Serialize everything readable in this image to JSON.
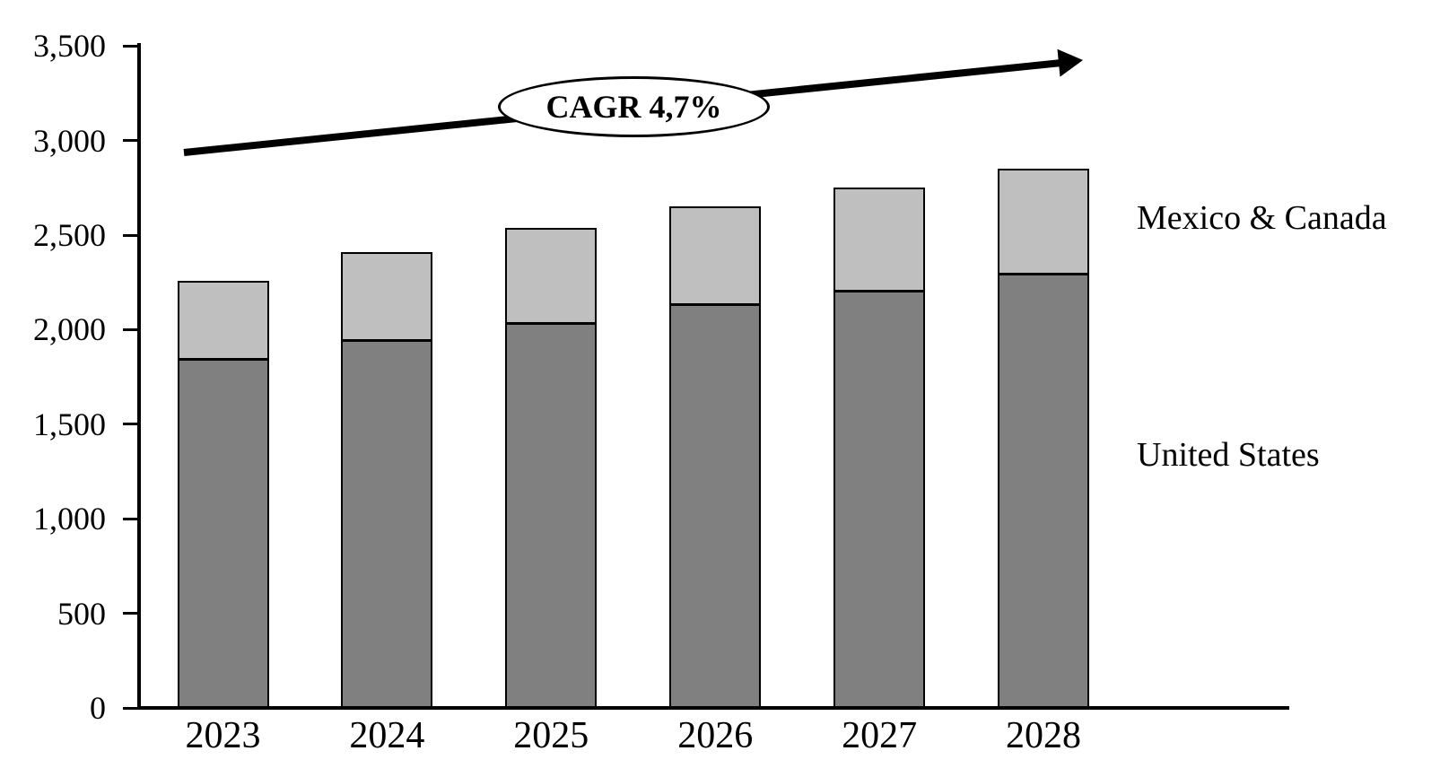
{
  "chart_data": {
    "type": "bar",
    "stacked": true,
    "title": "",
    "xlabel": "",
    "ylabel": "",
    "categories": [
      "2023",
      "2024",
      "2025",
      "2026",
      "2027",
      "2028"
    ],
    "series": [
      {
        "name": "United States",
        "color": "#808080",
        "values": [
          1850,
          1950,
          2040,
          2140,
          2210,
          2300
        ]
      },
      {
        "name": "Mexico & Canada",
        "color": "#bfbfbf",
        "values": [
          410,
          460,
          500,
          510,
          540,
          550
        ]
      }
    ],
    "totals": [
      2260,
      2410,
      2540,
      2650,
      2750,
      2850
    ],
    "ylim": [
      0,
      3500
    ],
    "ytick_step": 500,
    "ytick_labels": [
      "0",
      "500",
      "1,000",
      "1,500",
      "2,000",
      "2,500",
      "3,000",
      "3,500"
    ],
    "grid": false,
    "legend_position": "right",
    "annotation": {
      "label": "CAGR 4,7%",
      "shape": "ellipse-on-trend-arrow",
      "arrow_direction": "up-right"
    }
  },
  "legend": {
    "top_label": "Mexico & Canada",
    "bottom_label": "United States"
  },
  "annotation": {
    "cagr_label": "CAGR 4,7%"
  },
  "colors": {
    "united_states_bar": "#808080",
    "mexico_canada_bar": "#bfbfbf",
    "axis": "#000000",
    "arrow": "#000000",
    "annotation_border": "#000000",
    "background": "#ffffff"
  }
}
